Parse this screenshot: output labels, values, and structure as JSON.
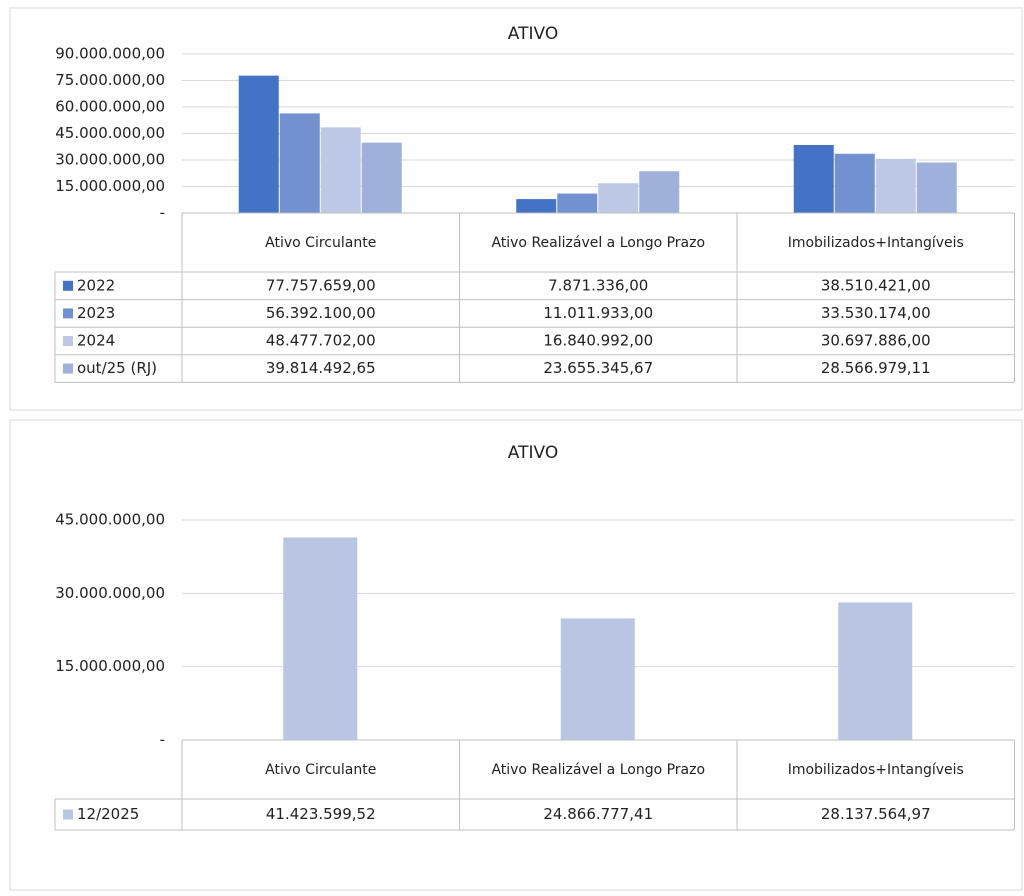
{
  "chart_data": [
    {
      "type": "bar",
      "title": "ATIVO",
      "categories": [
        "Ativo Circulante",
        "Ativo Realizável a Longo Prazo",
        "Imobilizados+Intangíveis"
      ],
      "series": [
        {
          "name": "2022",
          "color": "#4472c4",
          "values": [
            77757659.0,
            7871336.0,
            38510421.0
          ],
          "value_labels": [
            "77.757.659,00",
            "7.871.336,00",
            "38.510.421,00"
          ]
        },
        {
          "name": "2023",
          "color": "#7191d1",
          "values": [
            56392100.0,
            11011933.0,
            33530174.0
          ],
          "value_labels": [
            "56.392.100,00",
            "11.011.933,00",
            "33.530.174,00"
          ]
        },
        {
          "name": "2024",
          "color": "#bcc8e6",
          "values": [
            48477702.0,
            16840992.0,
            30697886.0
          ],
          "value_labels": [
            "48.477.702,00",
            "16.840.992,00",
            "30.697.886,00"
          ]
        },
        {
          "name": "out/25 (RJ)",
          "color": "#9fb1db",
          "values": [
            39814492.65,
            23655345.67,
            28566979.11
          ],
          "value_labels": [
            "39.814.492,65",
            "23.655.345,67",
            "28.566.979,11"
          ]
        }
      ],
      "ylim": [
        0,
        90000000
      ],
      "yticks": [
        {
          "value": 0,
          "label": "-"
        },
        {
          "value": 15000000,
          "label": "15.000.000,00"
        },
        {
          "value": 30000000,
          "label": "30.000.000,00"
        },
        {
          "value": 45000000,
          "label": "45.000.000,00"
        },
        {
          "value": 60000000,
          "label": "60.000.000,00"
        },
        {
          "value": 75000000,
          "label": "75.000.000,00"
        },
        {
          "value": 90000000,
          "label": "90.000.000,00"
        }
      ],
      "grid": true
    },
    {
      "type": "bar",
      "title": "ATIVO",
      "categories": [
        "Ativo Circulante",
        "Ativo Realizável a Longo Prazo",
        "Imobilizados+Intangíveis"
      ],
      "series": [
        {
          "name": "12/2025",
          "color": "#bac5e4",
          "values": [
            41423599.52,
            24866777.41,
            28137564.97
          ],
          "value_labels": [
            "41.423.599,52",
            "24.866.777,41",
            "28.137.564,97"
          ]
        }
      ],
      "ylim": [
        0,
        45000000
      ],
      "yticks": [
        {
          "value": 0,
          "label": "-"
        },
        {
          "value": 15000000,
          "label": "15.000.000,00"
        },
        {
          "value": 30000000,
          "label": "30.000.000,00"
        },
        {
          "value": 45000000,
          "label": "45.000.000,00"
        }
      ],
      "grid": true
    }
  ]
}
